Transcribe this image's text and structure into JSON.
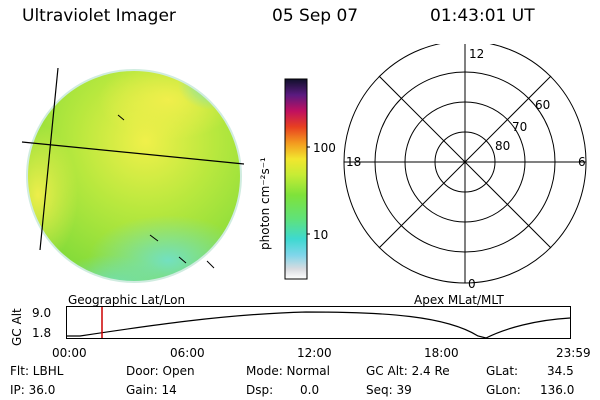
{
  "header": {
    "title": "Ultraviolet Imager",
    "date": "05 Sep 07",
    "time": "01:43:01 UT"
  },
  "colorbar": {
    "unit_label": "photon cm⁻²s⁻¹",
    "ticks": [
      "100",
      "10"
    ],
    "scale": "log"
  },
  "polar_plot": {
    "ring_labels": [
      "80",
      "70",
      "60"
    ],
    "hour_labels": {
      "top": "12",
      "left": "18",
      "right": "6",
      "bottom": "0"
    }
  },
  "labels": {
    "left_caption": "Geographic Lat/Lon",
    "right_caption": "Apex MLat/MLT"
  },
  "timeline": {
    "ylabel": "GC Alt",
    "y_ticks": [
      "9.0",
      "1.8"
    ],
    "x_ticks": [
      "00:00",
      "06:00",
      "12:00",
      "18:00",
      "23:59"
    ],
    "current_time_fraction": 0.0715
  },
  "info": {
    "flt": "Flt: LBHL",
    "ip": "IP: 36.0",
    "door": "Door: Open",
    "gain": "Gain: 14",
    "mode": "Mode: Normal",
    "dsp": "Dsp:",
    "dsp_val": "0.0",
    "gc_alt": "GC Alt: 2.4 Re",
    "seq": "Seq: 39",
    "glat_label": "GLat:",
    "glat_val": "34.5",
    "glon_label": "GLon:",
    "glon_val": "136.0"
  },
  "colors": {
    "disk_base": "#8fe23a",
    "disk_bright": "#e6ef4a",
    "disk_cyan": "#6fe0cf",
    "marker": "#cc0000"
  }
}
